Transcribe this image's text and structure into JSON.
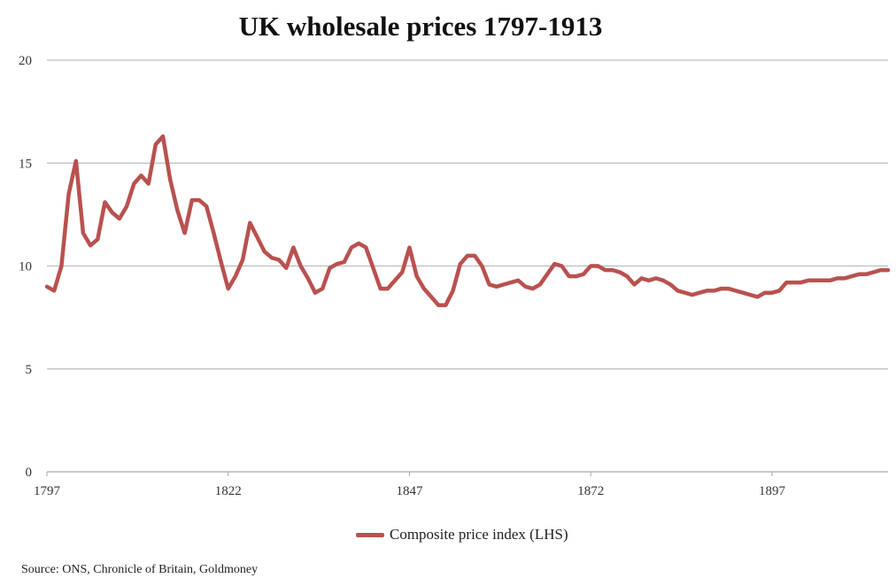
{
  "chart_data": {
    "type": "line",
    "title": "UK wholesale prices 1797-1913",
    "xlabel": "",
    "ylabel": "",
    "xlim": [
      1797,
      1913
    ],
    "ylim": [
      0,
      20
    ],
    "x_ticks": [
      "1797",
      "1822",
      "1847",
      "1872",
      "1897"
    ],
    "y_ticks": [
      "0",
      "5",
      "10",
      "15",
      "20"
    ],
    "grid": true,
    "legend_position": "bottom",
    "series": [
      {
        "name": "Composite price index (LHS)",
        "color": "#b9514f",
        "x": [
          1797,
          1798,
          1799,
          1800,
          1801,
          1802,
          1803,
          1804,
          1805,
          1806,
          1807,
          1808,
          1809,
          1810,
          1811,
          1812,
          1813,
          1814,
          1815,
          1816,
          1817,
          1818,
          1819,
          1820,
          1821,
          1822,
          1823,
          1824,
          1825,
          1826,
          1827,
          1828,
          1829,
          1830,
          1831,
          1832,
          1833,
          1834,
          1835,
          1836,
          1837,
          1838,
          1839,
          1840,
          1841,
          1842,
          1843,
          1844,
          1845,
          1846,
          1847,
          1848,
          1849,
          1850,
          1851,
          1852,
          1853,
          1854,
          1855,
          1856,
          1857,
          1858,
          1859,
          1860,
          1861,
          1862,
          1863,
          1864,
          1865,
          1866,
          1867,
          1868,
          1869,
          1870,
          1871,
          1872,
          1873,
          1874,
          1875,
          1876,
          1877,
          1878,
          1879,
          1880,
          1881,
          1882,
          1883,
          1884,
          1885,
          1886,
          1887,
          1888,
          1889,
          1890,
          1891,
          1892,
          1893,
          1894,
          1895,
          1896,
          1897,
          1898,
          1899,
          1900,
          1901,
          1902,
          1903,
          1904,
          1905,
          1906,
          1907,
          1908,
          1909,
          1910,
          1911,
          1912,
          1913
        ],
        "values": [
          9.0,
          8.8,
          10.0,
          13.5,
          15.1,
          11.6,
          11.0,
          11.3,
          13.1,
          12.6,
          12.3,
          12.9,
          14.0,
          14.4,
          14.0,
          15.9,
          16.3,
          14.2,
          12.7,
          11.6,
          13.2,
          13.2,
          12.9,
          11.6,
          10.2,
          8.9,
          9.5,
          10.3,
          12.1,
          11.4,
          10.7,
          10.4,
          10.3,
          9.9,
          10.9,
          10.0,
          9.4,
          8.7,
          8.9,
          9.9,
          10.1,
          10.2,
          10.9,
          11.1,
          10.9,
          9.9,
          8.9,
          8.9,
          9.3,
          9.7,
          10.9,
          9.5,
          8.9,
          8.5,
          8.1,
          8.1,
          8.8,
          10.1,
          10.5,
          10.5,
          10.0,
          9.1,
          9.0,
          9.1,
          9.2,
          9.3,
          9.0,
          8.9,
          9.1,
          9.6,
          10.1,
          10.0,
          9.5,
          9.5,
          9.6,
          10.0,
          10.0,
          9.8,
          9.8,
          9.7,
          9.5,
          9.1,
          9.4,
          9.3,
          9.4,
          9.3,
          9.1,
          8.8,
          8.7,
          8.6,
          8.7,
          8.8,
          8.8,
          8.9,
          8.9,
          8.8,
          8.7,
          8.6,
          8.5,
          8.7,
          8.7,
          8.8,
          9.2,
          9.2,
          9.2,
          9.3,
          9.3,
          9.3,
          9.3,
          9.4,
          9.4,
          9.5,
          9.6,
          9.6,
          9.7,
          9.8,
          9.8
        ]
      }
    ]
  },
  "source": "Source: ONS, Chronicle of Britain, Goldmoney"
}
